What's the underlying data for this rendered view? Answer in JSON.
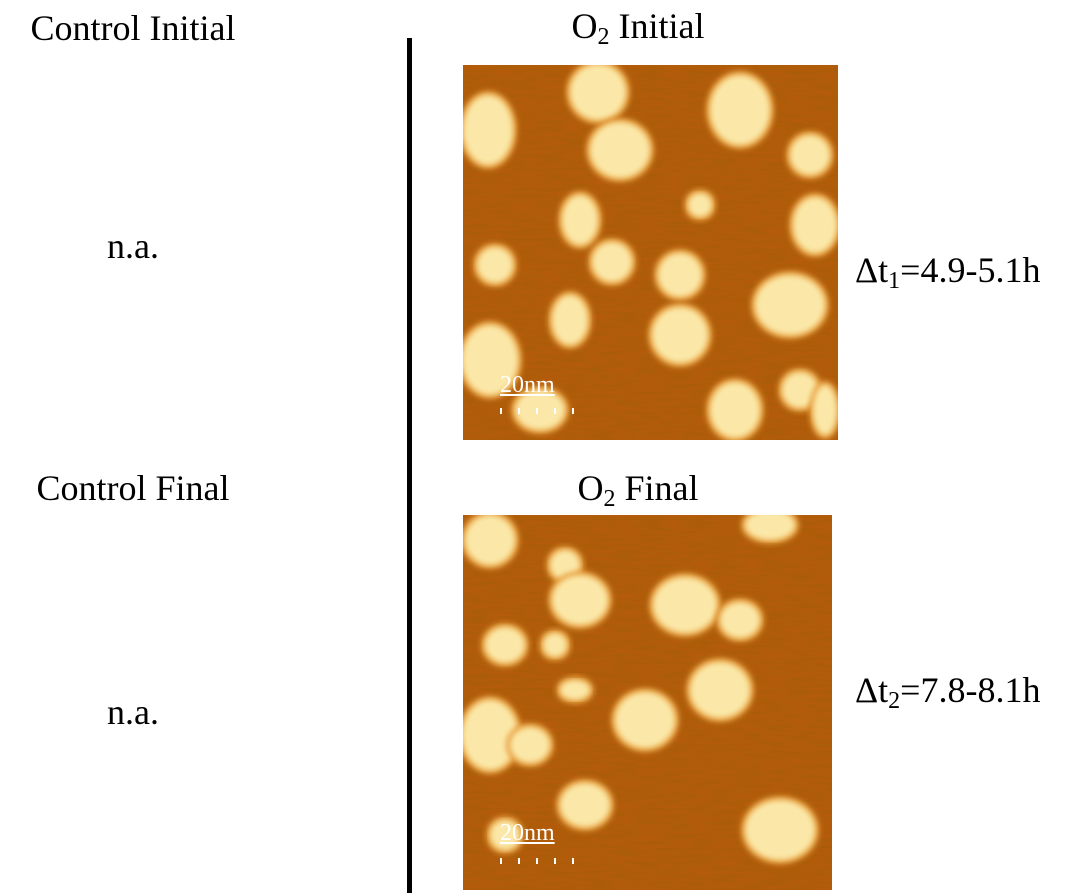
{
  "left": {
    "initial_title": "Control Initial",
    "initial_note": "n.a.",
    "final_title": "Control Final",
    "final_note": "n.a."
  },
  "right": {
    "initial_title": {
      "main": "O",
      "sub": "2",
      "rest": " Initial"
    },
    "initial_scale": "20nm",
    "initial_interval": {
      "main": "Δt",
      "sub": "1",
      "rest": "=4.9-5.1h"
    },
    "final_title": {
      "main": "O",
      "sub": "2",
      "rest": " Final"
    },
    "final_scale": "20nm",
    "final_interval": {
      "main": "Δt",
      "sub": "2",
      "rest": "=7.8-8.1h"
    }
  }
}
